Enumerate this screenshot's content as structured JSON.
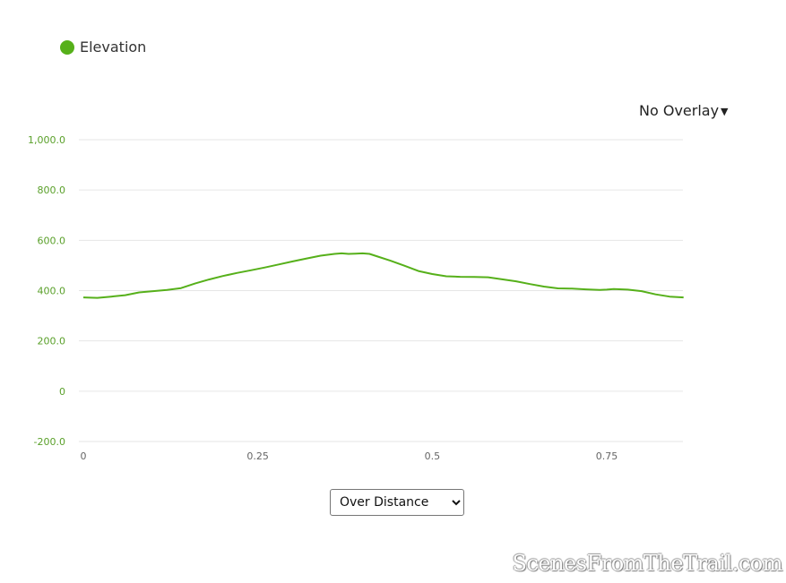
{
  "legend": {
    "label": "Elevation",
    "color": "#56b01a"
  },
  "overlay": {
    "label": "No Overlay",
    "icon": "caret-down-icon"
  },
  "mode_select": {
    "options": [
      "Over Distance"
    ],
    "selected": "Over Distance"
  },
  "watermark": {
    "text": "ScenesFromTheTrail.com"
  },
  "colors": {
    "line": "#56b01a",
    "y_tick": "#5aa02a",
    "x_tick": "#666666",
    "grid": "#e6e6e6"
  },
  "chart_data": {
    "type": "line",
    "title": "",
    "xlabel": "",
    "ylabel": "",
    "xlim": [
      0,
      0.86
    ],
    "ylim": [
      -200,
      1000
    ],
    "y_ticks": [
      {
        "value": 1000,
        "label": "1,000.0"
      },
      {
        "value": 800,
        "label": "800.0"
      },
      {
        "value": 600,
        "label": "600.0"
      },
      {
        "value": 400,
        "label": "400.0"
      },
      {
        "value": 200,
        "label": "200.0"
      },
      {
        "value": 0,
        "label": "0"
      },
      {
        "value": -200,
        "label": "-200.0"
      }
    ],
    "x_ticks": [
      {
        "value": 0,
        "label": "0"
      },
      {
        "value": 0.25,
        "label": "0.25"
      },
      {
        "value": 0.5,
        "label": "0.5"
      },
      {
        "value": 0.75,
        "label": "0.75"
      }
    ],
    "grid": true,
    "series": [
      {
        "name": "Elevation",
        "x": [
          0,
          0.02,
          0.04,
          0.06,
          0.08,
          0.1,
          0.12,
          0.14,
          0.16,
          0.18,
          0.2,
          0.22,
          0.24,
          0.26,
          0.28,
          0.3,
          0.32,
          0.34,
          0.36,
          0.37,
          0.38,
          0.39,
          0.4,
          0.41,
          0.42,
          0.44,
          0.46,
          0.48,
          0.5,
          0.52,
          0.54,
          0.56,
          0.58,
          0.6,
          0.62,
          0.64,
          0.66,
          0.68,
          0.7,
          0.72,
          0.74,
          0.75,
          0.76,
          0.78,
          0.8,
          0.82,
          0.84,
          0.86
        ],
        "y": [
          373,
          371,
          376,
          382,
          393,
          398,
          403,
          410,
          428,
          444,
          458,
          470,
          481,
          492,
          504,
          516,
          528,
          539,
          546,
          548,
          546,
          547,
          548,
          546,
          537,
          519,
          499,
          478,
          466,
          457,
          455,
          454,
          453,
          445,
          437,
          426,
          416,
          409,
          408,
          405,
          403,
          404,
          406,
          404,
          398,
          385,
          376,
          373
        ]
      }
    ]
  }
}
